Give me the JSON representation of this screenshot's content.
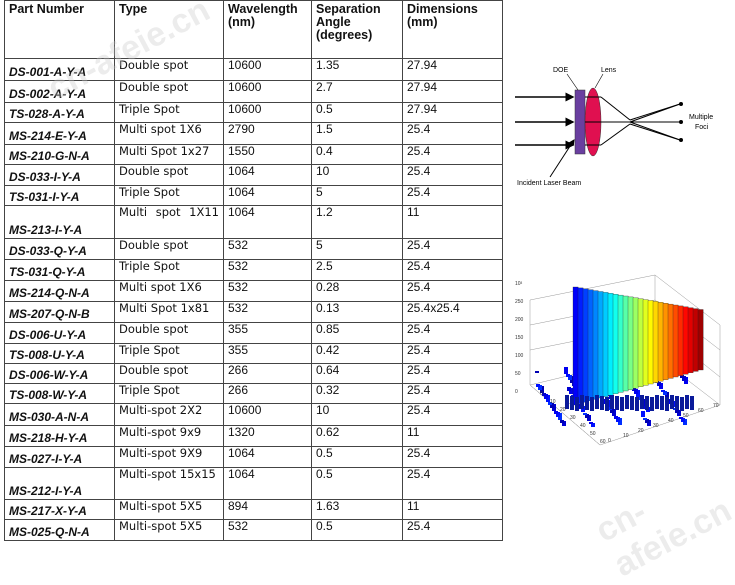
{
  "table": {
    "headers": {
      "part": "Part Number",
      "type": "Type",
      "wavelength": "Wavelength (nm)",
      "angle": "Separation Angle (degrees)",
      "dims": "Dimensions (mm)"
    },
    "rows": [
      {
        "part": "DS-001-A-Y-A",
        "type": "Double spot",
        "wl": "10600",
        "ang": "1.35",
        "dim": "27.94"
      },
      {
        "part": "DS-002-A-Y-A",
        "type": "Double spot",
        "wl": "10600",
        "ang": "2.7",
        "dim": "27.94"
      },
      {
        "part": "TS-028-A-Y-A",
        "type": "Triple Spot",
        "wl": "10600",
        "ang": "0.5",
        "dim": "27.94"
      },
      {
        "part": "MS-214-E-Y-A",
        "type": "Multi spot 1X6",
        "wl": "2790",
        "ang": "1.5",
        "dim": "25.4"
      },
      {
        "part": "MS-210-G-N-A",
        "type": "Multi Spot 1x27",
        "wl": "1550",
        "ang": "0.4",
        "dim": "25.4"
      },
      {
        "part": "DS-033-I-Y-A",
        "type": "Double spot",
        "wl": "1064",
        "ang": "10",
        "dim": "25.4"
      },
      {
        "part": "TS-031-I-Y-A",
        "type": "Triple Spot",
        "wl": "1064",
        "ang": "5",
        "dim": "25.4"
      },
      {
        "part": "MS-213-I-Y-A",
        "type": "Multi spot 1X11",
        "wl": "1064",
        "ang": "1.2",
        "dim": "11"
      },
      {
        "part": "DS-033-Q-Y-A",
        "type": "Double spot",
        "wl": "532",
        "ang": "5",
        "dim": "25.4"
      },
      {
        "part": "TS-031-Q-Y-A",
        "type": "Triple Spot",
        "wl": "532",
        "ang": "2.5",
        "dim": "25.4"
      },
      {
        "part": "MS-214-Q-N-A",
        "type": "Multi spot 1X6",
        "wl": "532",
        "ang": "0.28",
        "dim": "25.4"
      },
      {
        "part": "MS-207-Q-N-B",
        "type": "Multi Spot 1x81",
        "wl": "532",
        "ang": "0.13",
        "dim": "25.4x25.4"
      },
      {
        "part": "DS-006-U-Y-A",
        "type": "Double spot",
        "wl": "355",
        "ang": "0.85",
        "dim": "25.4"
      },
      {
        "part": "TS-008-U-Y-A",
        "type": "Triple Spot",
        "wl": "355",
        "ang": "0.42",
        "dim": "25.4"
      },
      {
        "part": "DS-006-W-Y-A",
        "type": "Double spot",
        "wl": "266",
        "ang": "0.64",
        "dim": "25.4"
      },
      {
        "part": "TS-008-W-Y-A",
        "type": "Triple Spot",
        "wl": "266",
        "ang": "0.32",
        "dim": "25.4"
      },
      {
        "part": "MS-030-A-N-A",
        "type": "Multi-spot  2X2",
        "wl": "10600",
        "ang": "10",
        "dim": "25.4"
      },
      {
        "part": "MS-218-H-Y-A",
        "type": "Multi-spot  9x9",
        "wl": "1320",
        "ang": "0.62",
        "dim": "11"
      },
      {
        "part": "MS-027-I-Y-A",
        "type": "Multi-spot  9X9",
        "wl": "1064",
        "ang": "0.5",
        "dim": "25.4"
      },
      {
        "part": "MS-212-I-Y-A",
        "type": "Multi-spot 15x15",
        "wl": "1064",
        "ang": "0.5",
        "dim": "25.4"
      },
      {
        "part": "MS-217-X-Y-A",
        "type": "Multi-spot  5X5",
        "wl": "894",
        "ang": "1.63",
        "dim": "11"
      },
      {
        "part": "MS-025-Q-N-A",
        "type": "Multi-spot  5X5",
        "wl": "532",
        "ang": "0.5",
        "dim": "25.4"
      }
    ]
  },
  "diagram": {
    "doe_label": "DOE",
    "lens_label": "Lens",
    "foci_label_1": "Multiple",
    "foci_label_2": "Foci",
    "beam_label": "Incident Laser Beam",
    "colors": {
      "doe": "#6a3fa0",
      "lens": "#e01050"
    }
  },
  "plot3d": {
    "z_ticks": [
      "10³",
      "250",
      "200",
      "150",
      "100",
      "50",
      "0"
    ],
    "y_ticks": [
      "0",
      "10",
      "20",
      "30",
      "40",
      "50",
      "60"
    ],
    "x_ticks": [
      "70",
      "60",
      "50",
      "40",
      "30",
      "20",
      "10",
      "0"
    ]
  },
  "watermark": "cn-afeie.cn"
}
